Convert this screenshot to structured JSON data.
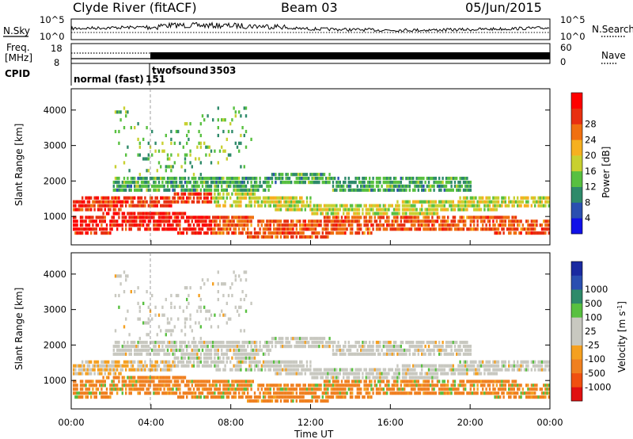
{
  "header": {
    "station": "Clyde River (fitACF)",
    "beam": "Beam 03",
    "date": "05/Jun/2015"
  },
  "panel_labels": {
    "nsky": "N.Sky",
    "nsearch": "N.Search",
    "freq_line1": "Freq.",
    "freq_line2": "[MHz]",
    "nave": "Nave",
    "cpid": "CPID",
    "cpid_mode1": "normal (fast)",
    "cpid_code1": "151",
    "cpid_mode2": "twofsound",
    "cpid_code2": "3503"
  },
  "colors": {
    "power": [
      "#1010e8",
      "#2a4fb0",
      "#2e8a6a",
      "#58c040",
      "#c8d030",
      "#f6b020",
      "#f07010",
      "#e83010",
      "#ff0000"
    ],
    "velocity": [
      "#e01010",
      "#f05010",
      "#f08020",
      "#f5a020",
      "#c8c8c0",
      "#c8c8c0",
      "#58c040",
      "#2e8a6a",
      "#2a4fb0",
      "#1a2aa0"
    ]
  },
  "chart_data": [
    {
      "type": "line",
      "id": "noise",
      "left_axis": {
        "label": "N.Sky",
        "ticks": [
          "10^5",
          "10^0"
        ]
      },
      "right_axis": {
        "label": "N.Search",
        "ticks": [
          "10^5",
          "10^0"
        ]
      }
    },
    {
      "type": "line",
      "id": "frequency",
      "left_axis": {
        "label": "Freq. [MHz]",
        "ticks": [
          "18",
          "8"
        ]
      },
      "right_axis": {
        "label": "Nave",
        "ticks": [
          "60",
          "0"
        ]
      }
    },
    {
      "type": "heatmap",
      "id": "power",
      "xlabel": "",
      "ylabel": "Slant Range [km]",
      "xlim": [
        "00:00",
        "24:00"
      ],
      "ylim": [
        200,
        4600
      ],
      "yticks": [
        1000,
        2000,
        3000,
        4000
      ],
      "colorbar": {
        "label": "Power [dB]",
        "ticks": [
          "4",
          "8",
          "12",
          "16",
          "20",
          "24",
          "28"
        ]
      }
    },
    {
      "type": "heatmap",
      "id": "velocity",
      "xlabel": "Time UT",
      "ylabel": "Slant Range [km]",
      "xlim": [
        "00:00",
        "24:00"
      ],
      "ylim": [
        200,
        4600
      ],
      "xticks": [
        "00:00",
        "04:00",
        "08:00",
        "12:00",
        "16:00",
        "20:00",
        "00:00"
      ],
      "yticks": [
        1000,
        2000,
        3000,
        4000
      ],
      "colorbar": {
        "label": "Velocity [m s-1]",
        "ticks": [
          "-1000",
          "-500",
          "-100",
          "-25",
          "25",
          "100",
          "500",
          "1000"
        ]
      }
    }
  ]
}
